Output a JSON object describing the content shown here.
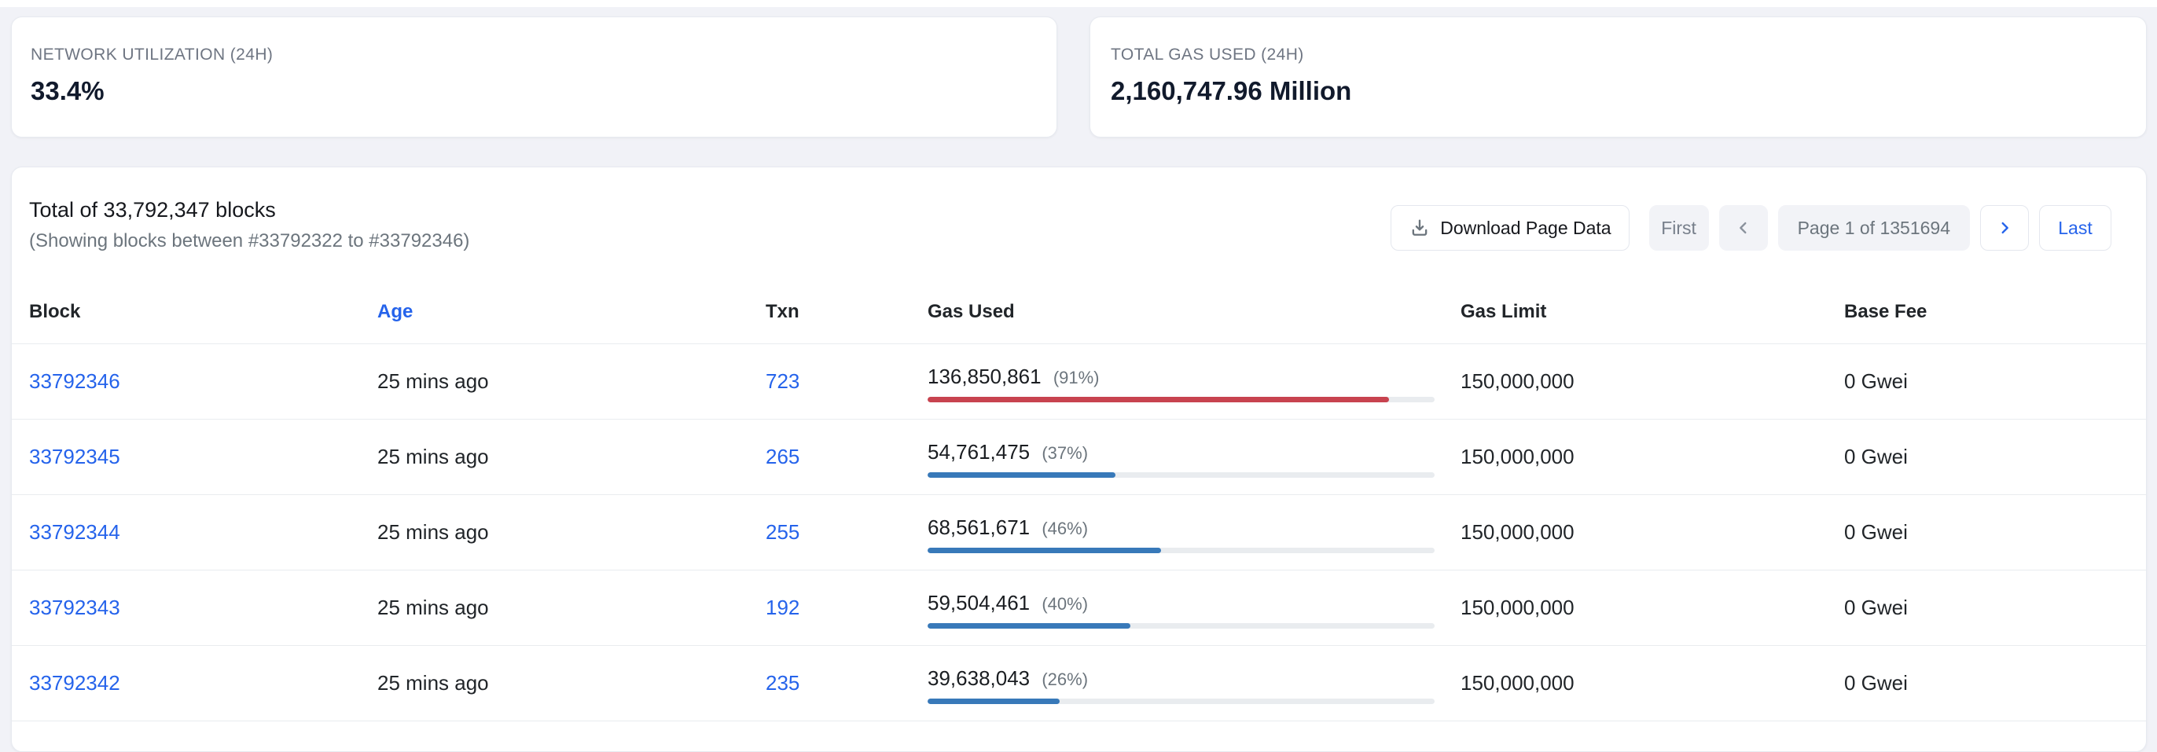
{
  "stats": [
    {
      "label": "NETWORK UTILIZATION (24H)",
      "value": "33.4%"
    },
    {
      "label": "TOTAL GAS USED (24H)",
      "value": "2,160,747.96 Million"
    }
  ],
  "list_header": {
    "total": "Total of 33,792,347 blocks",
    "showing": "(Showing blocks between #33792322 to #33792346)",
    "download_label": "Download Page Data",
    "pagination": {
      "first": "First",
      "page": "Page 1 of 1351694",
      "last": "Last"
    }
  },
  "table": {
    "columns": [
      "Block",
      "Age",
      "Txn",
      "Gas Used",
      "Gas Limit",
      "Base Fee"
    ],
    "rows": [
      {
        "block": "33792346",
        "age": "25 mins ago",
        "txn": "723",
        "gas_used": "136,850,861",
        "gas_pct_label": "(91%)",
        "pct": 91,
        "bar_color": "#c8434f",
        "gas_limit": "150,000,000",
        "base_fee": "0 Gwei"
      },
      {
        "block": "33792345",
        "age": "25 mins ago",
        "txn": "265",
        "gas_used": "54,761,475",
        "gas_pct_label": "(37%)",
        "pct": 37,
        "bar_color": "#3879b9",
        "gas_limit": "150,000,000",
        "base_fee": "0 Gwei"
      },
      {
        "block": "33792344",
        "age": "25 mins ago",
        "txn": "255",
        "gas_used": "68,561,671",
        "gas_pct_label": "(46%)",
        "pct": 46,
        "bar_color": "#3879b9",
        "gas_limit": "150,000,000",
        "base_fee": "0 Gwei"
      },
      {
        "block": "33792343",
        "age": "25 mins ago",
        "txn": "192",
        "gas_used": "59,504,461",
        "gas_pct_label": "(40%)",
        "pct": 40,
        "bar_color": "#3879b9",
        "gas_limit": "150,000,000",
        "base_fee": "0 Gwei"
      },
      {
        "block": "33792342",
        "age": "25 mins ago",
        "txn": "235",
        "gas_used": "39,638,043",
        "gas_pct_label": "(26%)",
        "pct": 26,
        "bar_color": "#3879b9",
        "gas_limit": "150,000,000",
        "base_fee": "0 Gwei"
      }
    ]
  },
  "colors": {
    "link_blue": "#2563eb",
    "bar_red": "#c8434f",
    "bar_blue": "#3879b9",
    "bar_track": "#e9ecef"
  },
  "icons": {
    "download": "download-tray-icon",
    "prev": "chevron-left-icon",
    "next": "chevron-right-icon"
  }
}
